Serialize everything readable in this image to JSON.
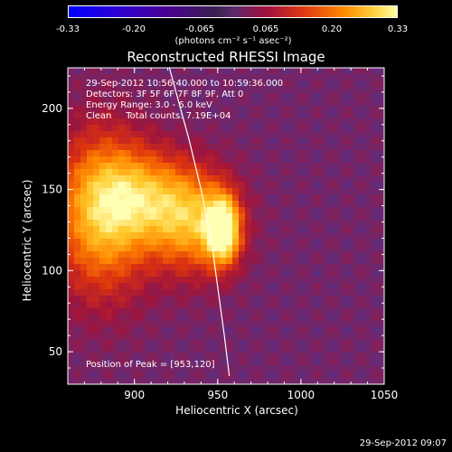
{
  "colorbar": {
    "ticks": [
      "-0.33",
      "-0.20",
      "-0.065",
      "0.065",
      "0.20",
      "0.33"
    ],
    "unit": "(photons cm⁻² s⁻¹ asec⁻²)"
  },
  "title": "Reconstructed RHESSI Image",
  "info": {
    "line1": "29-Sep-2012 10:56:40.000 to 10:59:36.000",
    "line2": "Detectors: 3F 5F 6F 7F 8F 9F, Att 0",
    "line3": "Energy Range: 3.0 - 6.0 keV",
    "line4": "Clean     Total counts: 7.19E+04"
  },
  "peak_label": "Position of Peak = [953,120]",
  "footer_timestamp": "29-Sep-2012 09:07",
  "chart_data": {
    "type": "heatmap",
    "title": "Reconstructed RHESSI Image",
    "xlabel": "Heliocentric X (arcsec)",
    "ylabel": "Heliocentric Y (arcsec)",
    "xlim": [
      860,
      1050
    ],
    "ylim": [
      30,
      225
    ],
    "x_ticks": [
      "900",
      "950",
      "1000",
      "1050"
    ],
    "y_ticks": [
      "50",
      "100",
      "150",
      "200"
    ],
    "x_tick_values": [
      900,
      950,
      1000,
      1050
    ],
    "y_tick_values": [
      50,
      100,
      150,
      200
    ],
    "colorbar_range": [
      -0.33,
      0.33
    ],
    "peak_position": [
      953,
      120
    ],
    "sources": [
      {
        "x": 953,
        "y": 125,
        "sx": 7,
        "sy": 14,
        "amp": 0.33
      },
      {
        "x": 935,
        "y": 130,
        "sx": 18,
        "sy": 22,
        "amp": 0.2
      },
      {
        "x": 880,
        "y": 135,
        "sx": 20,
        "sy": 35,
        "amp": 0.22
      },
      {
        "x": 905,
        "y": 145,
        "sx": 22,
        "sy": 20,
        "amp": 0.16
      }
    ],
    "limb_curve": [
      [
        921,
        225
      ],
      [
        933,
        180
      ],
      [
        940,
        150
      ],
      [
        946,
        120
      ],
      [
        950,
        90
      ],
      [
        954,
        60
      ],
      [
        957,
        35
      ]
    ]
  }
}
